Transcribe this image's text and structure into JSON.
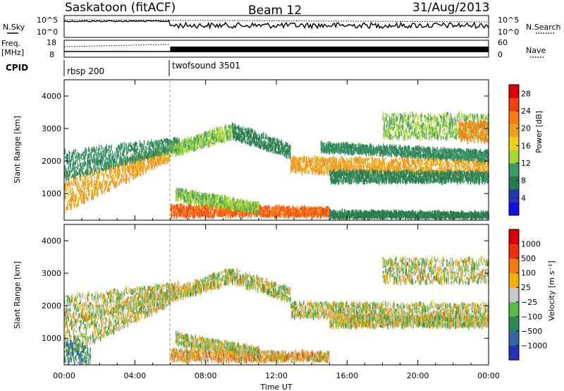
{
  "header": {
    "station": "Saskatoon (fitACF)",
    "beam": "Beam 12",
    "date": "31/Aug/2013"
  },
  "top_panels": {
    "nsky_label": "N.Sky",
    "nsearch_label": "N.Search",
    "freq_label_1": "Freq.",
    "freq_label_2": "[MHz]",
    "nave_label": "Nave",
    "cpid_label": "CPID",
    "nsky_ticks": [
      "10^5",
      "10^0"
    ],
    "nsearch_ticks": [
      "10^5",
      "10^0"
    ],
    "freq_ticks": [
      "18",
      "8"
    ],
    "nave_ticks": [
      "60",
      "0"
    ],
    "cpid_segments": [
      {
        "name": "rbsp 200",
        "start_hour": 0,
        "end_hour": 6
      },
      {
        "name": "twofsound 3501",
        "start_hour": 6,
        "end_hour": 24
      }
    ]
  },
  "chart_data": [
    {
      "type": "heatmap",
      "title": "",
      "xlabel": "Time UT",
      "ylabel": "Slant Range [km]",
      "x_ticks": [
        "00:00",
        "04:00",
        "08:00",
        "12:00",
        "16:00",
        "20:00",
        "00:00"
      ],
      "y_ticks": [
        1000,
        2000,
        3000,
        4000
      ],
      "xlim": [
        0,
        24
      ],
      "ylim": [
        180,
        4500
      ],
      "colorbar": {
        "label": "Power [dB]",
        "ticks": [
          4,
          8,
          12,
          16,
          20,
          24,
          28
        ],
        "range": [
          0,
          30
        ],
        "colors": [
          "#1010e0",
          "#2238b0",
          "#287a4a",
          "#3f9a6e",
          "#a8d830",
          "#f3d018",
          "#f0a020",
          "#ff7a10",
          "#f04010",
          "#e00000"
        ]
      },
      "bands": [
        {
          "t0": 0.0,
          "t1": 6.0,
          "r0": 420,
          "r1": 1450,
          "r0_end": 2050,
          "r1_end": 2450,
          "level": 20
        },
        {
          "t0": 0.0,
          "t1": 6.5,
          "r0": 1400,
          "r1": 2300,
          "r0_end": 2350,
          "r1_end": 2700,
          "level": 9
        },
        {
          "t0": 6.0,
          "t1": 9.5,
          "r0": 2150,
          "r1": 2500,
          "r0_end": 2700,
          "r1_end": 3150,
          "level": 12
        },
        {
          "t0": 9.5,
          "t1": 12.8,
          "r0": 2700,
          "r1": 3150,
          "r0_end": 2100,
          "r1_end": 2500,
          "level": 8
        },
        {
          "t0": 12.8,
          "t1": 24.0,
          "r0": 1650,
          "r1": 2100,
          "r0_end": 1500,
          "r1_end": 2050,
          "level": 20
        },
        {
          "t0": 15.0,
          "t1": 24.0,
          "r0": 1350,
          "r1": 1700,
          "r0_end": 1350,
          "r1_end": 1650,
          "level": 8
        },
        {
          "t0": 14.5,
          "t1": 24.0,
          "r0": 2300,
          "r1": 2550,
          "r0_end": 2000,
          "r1_end": 2300,
          "level": 9
        },
        {
          "t0": 18.0,
          "t1": 24.0,
          "r0": 2700,
          "r1": 3450,
          "r0_end": 2700,
          "r1_end": 3450,
          "level": 12
        },
        {
          "t0": 22.3,
          "t1": 24.0,
          "r0": 2600,
          "r1": 3200,
          "r0_end": 2600,
          "r1_end": 3200,
          "level": 22
        },
        {
          "t0": 6.0,
          "t1": 15.0,
          "r0": 300,
          "r1": 650,
          "r0_end": 300,
          "r1_end": 550,
          "level": 24
        },
        {
          "t0": 6.3,
          "t1": 11.0,
          "r0": 800,
          "r1": 1150,
          "r0_end": 400,
          "r1_end": 700,
          "level": 12
        },
        {
          "t0": 15.0,
          "t1": 24.0,
          "r0": 250,
          "r1": 450,
          "r0_end": 250,
          "r1_end": 400,
          "level": 7
        }
      ]
    },
    {
      "type": "heatmap",
      "title": "",
      "xlabel": "Time UT",
      "ylabel": "Slant Range [km]",
      "x_ticks": [
        "00:00",
        "04:00",
        "08:00",
        "12:00",
        "16:00",
        "20:00",
        "00:00"
      ],
      "y_ticks": [
        1000,
        2000,
        3000,
        4000
      ],
      "xlim": [
        0,
        24
      ],
      "ylim": [
        180,
        4500
      ],
      "colorbar": {
        "label": "Velocity [m s⁻¹]",
        "ticks": [
          "1000",
          "500",
          "100",
          "25",
          "−25",
          "−100",
          "−500",
          "−1000"
        ],
        "colors": [
          "#2233bb",
          "#3366aa",
          "#2a8a55",
          "#55bb44",
          "#c8c8c8",
          "#f5b000",
          "#f57a10",
          "#ee3010",
          "#dd0000"
        ]
      },
      "bands": [
        {
          "t0": 0.0,
          "t1": 6.0,
          "r0": 420,
          "r1": 1450,
          "r0_end": 2050,
          "r1_end": 2450,
          "level": 4
        },
        {
          "t0": 0.0,
          "t1": 6.5,
          "r0": 1400,
          "r1": 2300,
          "r0_end": 2350,
          "r1_end": 2700,
          "level": 4
        },
        {
          "t0": 6.0,
          "t1": 9.5,
          "r0": 2150,
          "r1": 2500,
          "r0_end": 2700,
          "r1_end": 3150,
          "level": 4
        },
        {
          "t0": 9.5,
          "t1": 12.8,
          "r0": 2700,
          "r1": 3150,
          "r0_end": 2100,
          "r1_end": 2500,
          "level": 4
        },
        {
          "t0": 12.8,
          "t1": 24.0,
          "r0": 1650,
          "r1": 2100,
          "r0_end": 1500,
          "r1_end": 2050,
          "level": 4
        },
        {
          "t0": 15.0,
          "t1": 24.0,
          "r0": 1350,
          "r1": 1700,
          "r0_end": 1350,
          "r1_end": 1650,
          "level": 4
        },
        {
          "t0": 18.0,
          "t1": 24.0,
          "r0": 2700,
          "r1": 3450,
          "r0_end": 2700,
          "r1_end": 3450,
          "level": 4
        },
        {
          "t0": 6.0,
          "t1": 15.0,
          "r0": 300,
          "r1": 650,
          "r0_end": 300,
          "r1_end": 550,
          "level": 5
        },
        {
          "t0": 6.3,
          "t1": 11.0,
          "r0": 800,
          "r1": 1150,
          "r0_end": 400,
          "r1_end": 700,
          "level": 4
        },
        {
          "t0": 0.0,
          "t1": 1.5,
          "r0": 200,
          "r1": 1000,
          "r0_end": 200,
          "r1_end": 700,
          "level": 2
        }
      ]
    }
  ]
}
